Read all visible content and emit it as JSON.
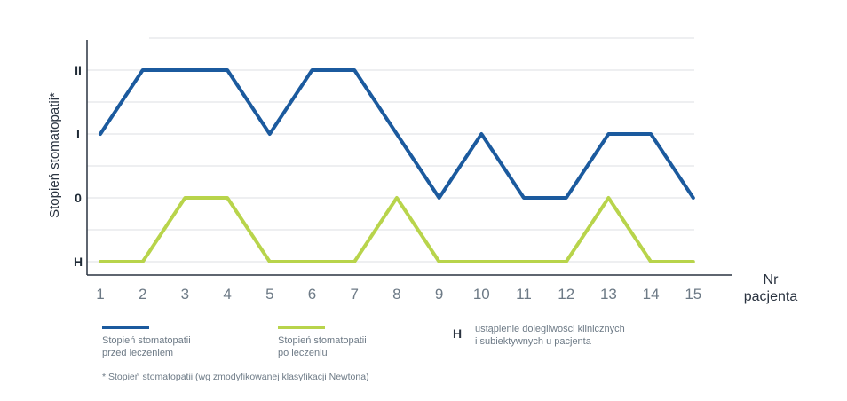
{
  "chart_data": {
    "type": "line",
    "x": [
      1,
      2,
      3,
      4,
      5,
      6,
      7,
      8,
      9,
      10,
      11,
      12,
      13,
      14,
      15
    ],
    "y_categories": [
      "H",
      "0",
      "I",
      "II"
    ],
    "ylabel": "Stopień stomatopatii*",
    "xlabel_line1": "Nr",
    "xlabel_line2": "pacjenta",
    "grid": true,
    "series": [
      {
        "name_line1": "Stopień stomatopatii",
        "name_line2": "przed leczeniem",
        "color": "#1b5a9e",
        "values": [
          "I",
          "II",
          "II",
          "II",
          "I",
          "II",
          "II",
          "I",
          "0",
          "I",
          "0",
          "0",
          "I",
          "I",
          "0"
        ]
      },
      {
        "name_line1": "Stopień stomatopatii",
        "name_line2": "po leczeniu",
        "color": "#b8d44b",
        "values": [
          "H",
          "H",
          "0",
          "0",
          "H",
          "H",
          "H",
          "0",
          "H",
          "H",
          "H",
          "H",
          "0",
          "H",
          "H"
        ]
      }
    ],
    "legend_h_symbol": "H",
    "legend_h_line1": "ustąpienie dolegliwości klinicznych",
    "legend_h_line2": "i subiektywnych u pacjenta",
    "footnote": "* Stopień stomatopatii (wg zmodyfikowanej klasyfikacji Newtona)"
  }
}
